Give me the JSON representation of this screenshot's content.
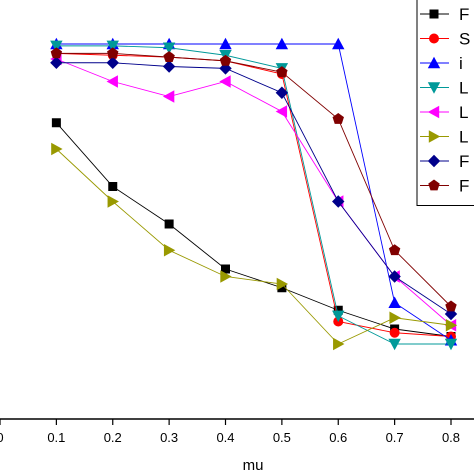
{
  "chart_data": {
    "type": "line",
    "title": "",
    "xlabel": "mu",
    "ylabel": "",
    "xlim": [
      0,
      0.8
    ],
    "x_ticks": [
      "0",
      "0.1",
      "0.2",
      "0.3",
      "0.4",
      "0.5",
      "0.6",
      "0.7",
      "0.8"
    ],
    "grid": false,
    "legend_position": "top-right",
    "x": [
      0.1,
      0.2,
      0.3,
      0.4,
      0.5,
      0.6,
      0.7,
      0.8
    ],
    "series": [
      {
        "name": "F",
        "color": "#000000",
        "marker": "square",
        "values": [
          0.79,
          0.62,
          0.52,
          0.4,
          0.35,
          0.29,
          0.24,
          0.22
        ]
      },
      {
        "name": "S",
        "color": "#ff0000",
        "marker": "circle",
        "values": [
          0.975,
          0.97,
          0.965,
          0.955,
          0.92,
          0.26,
          0.23,
          0.22
        ]
      },
      {
        "name": "i",
        "color": "#0000ff",
        "marker": "triangle-up",
        "values": [
          1.0,
          1.0,
          1.0,
          1.0,
          1.0,
          1.0,
          0.31,
          0.21
        ]
      },
      {
        "name": "L",
        "color": "#009999",
        "marker": "triangle-down",
        "values": [
          0.995,
          0.995,
          0.99,
          0.97,
          0.935,
          0.275,
          0.2,
          0.2
        ]
      },
      {
        "name": "L",
        "color": "#ff00ff",
        "marker": "triangle-left",
        "values": [
          0.96,
          0.9,
          0.86,
          0.9,
          0.82,
          0.58,
          0.38,
          0.25
        ]
      },
      {
        "name": "L",
        "color": "#999900",
        "marker": "triangle-right",
        "values": [
          0.72,
          0.58,
          0.45,
          0.38,
          0.36,
          0.2,
          0.27,
          0.25
        ]
      },
      {
        "name": "F",
        "color": "#00008b",
        "marker": "diamond",
        "values": [
          0.95,
          0.95,
          0.94,
          0.935,
          0.87,
          0.58,
          0.38,
          0.28
        ]
      },
      {
        "name": "F",
        "color": "#800000",
        "marker": "pentagon",
        "values": [
          0.975,
          0.975,
          0.965,
          0.955,
          0.925,
          0.8,
          0.45,
          0.3
        ]
      }
    ]
  }
}
